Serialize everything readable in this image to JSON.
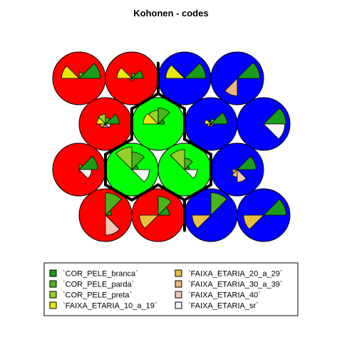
{
  "chart_data": {
    "type": "som-codes",
    "title": "Kohonen - codes",
    "grid": {
      "rows": 4,
      "cols": 4,
      "topology": "hexagonal"
    },
    "variables": [
      {
        "name": "`COR_PELE_branca`",
        "color": "#1a9e1a"
      },
      {
        "name": "`COR_PELE_parda`",
        "color": "#47b51b"
      },
      {
        "name": "`COR_PELE_preta`",
        "color": "#92d22a"
      },
      {
        "name": "`FAIXA_ETARIA_10_a_19`",
        "color": "#e8e80a"
      },
      {
        "name": "`FAIXA_ETARIA_20_a_29`",
        "color": "#e8bf40"
      },
      {
        "name": "`FAIXA_ETARIA_30_a_39`",
        "color": "#ebb482"
      },
      {
        "name": "`FAIXA_ETARIA_40`",
        "color": "#f0c8b4"
      },
      {
        "name": "`FAIXA_ETARIA_sr`",
        "color": "#f5f5f5"
      }
    ],
    "cluster_colors": [
      "#ff0000",
      "#00ff00",
      "#0000ff"
    ],
    "units": [
      {
        "row": 1,
        "col": 1,
        "cluster": 0,
        "codes": [
          0.85,
          0.25,
          0.0,
          0.7,
          0.0,
          0.0,
          0.0,
          0.0
        ]
      },
      {
        "row": 1,
        "col": 2,
        "cluster": 0,
        "codes": [
          0.45,
          0.2,
          0.0,
          0.6,
          0.1,
          0.1,
          0.1,
          0.1
        ]
      },
      {
        "row": 1,
        "col": 3,
        "cluster": 2,
        "codes": [
          0.85,
          0.0,
          0.0,
          0.75,
          0.0,
          0.0,
          0.0,
          0.0
        ]
      },
      {
        "row": 1,
        "col": 4,
        "cluster": 2,
        "codes": [
          0.9,
          0.0,
          0.0,
          0.0,
          0.0,
          0.7,
          0.0,
          0.0
        ]
      },
      {
        "row": 2,
        "col": 1,
        "cluster": 0,
        "codes": [
          0.55,
          0.25,
          0.4,
          0.35,
          0.2,
          0.15,
          0.15,
          0.2
        ]
      },
      {
        "row": 2,
        "col": 2,
        "cluster": 1,
        "codes": [
          0.25,
          0.65,
          0.55,
          0.6,
          0.0,
          0.0,
          0.0,
          0.0
        ]
      },
      {
        "row": 2,
        "col": 3,
        "cluster": 2,
        "codes": [
          0.65,
          0.2,
          0.1,
          0.25,
          0.15,
          0.1,
          0.1,
          0.1
        ]
      },
      {
        "row": 2,
        "col": 4,
        "cluster": 2,
        "codes": [
          0.9,
          0.0,
          0.0,
          0.0,
          0.0,
          0.0,
          0.0,
          0.85
        ]
      },
      {
        "row": 3,
        "col": 1,
        "cluster": 0,
        "codes": [
          0.75,
          0.2,
          0.0,
          0.0,
          0.0,
          0.0,
          0.1,
          0.5
        ]
      },
      {
        "row": 3,
        "col": 2,
        "cluster": 1,
        "codes": [
          0.25,
          0.7,
          0.9,
          0.0,
          0.0,
          0.0,
          0.0,
          0.7
        ]
      },
      {
        "row": 3,
        "col": 3,
        "cluster": 1,
        "codes": [
          0.2,
          0.45,
          0.8,
          0.0,
          0.0,
          0.0,
          0.0,
          0.5
        ]
      },
      {
        "row": 3,
        "col": 4,
        "cluster": 2,
        "codes": [
          0.75,
          0.1,
          0.0,
          0.0,
          0.2,
          0.3,
          0.5,
          0.0
        ]
      },
      {
        "row": 4,
        "col": 1,
        "cluster": 0,
        "codes": [
          0.25,
          0.9,
          0.0,
          0.0,
          0.0,
          0.0,
          0.8,
          0.0
        ]
      },
      {
        "row": 4,
        "col": 2,
        "cluster": 0,
        "codes": [
          0.45,
          0.75,
          0.0,
          0.0,
          0.75,
          0.0,
          0.0,
          0.0
        ]
      },
      {
        "row": 4,
        "col": 3,
        "cluster": 2,
        "codes": [
          0.0,
          0.9,
          0.0,
          0.0,
          0.75,
          0.0,
          0.0,
          0.0
        ]
      },
      {
        "row": 4,
        "col": 4,
        "cluster": 2,
        "codes": [
          0.9,
          0.0,
          0.0,
          0.0,
          0.8,
          0.0,
          0.0,
          0.0
        ]
      }
    ],
    "legend": {
      "position": "bottom",
      "columns": 2
    }
  }
}
